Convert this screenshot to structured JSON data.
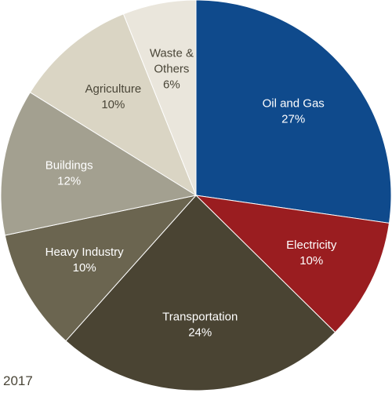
{
  "chart_data": {
    "type": "pie",
    "title": "",
    "slices": [
      {
        "label": "Oil and Gas",
        "value": 27,
        "display": "27%",
        "color": "#0f4a8c",
        "text_color": "#ffffff"
      },
      {
        "label": "Electricity",
        "value": 10,
        "display": "10%",
        "color": "#9a1d20",
        "text_color": "#ffffff"
      },
      {
        "label": "Transportation",
        "value": 24,
        "display": "24%",
        "color": "#4a4433",
        "text_color": "#ffffff"
      },
      {
        "label": "Heavy Industry",
        "value": 10,
        "display": "10%",
        "color": "#6b6550",
        "text_color": "#ffffff"
      },
      {
        "label": "Buildings",
        "value": 12,
        "display": "12%",
        "color": "#a3a090",
        "text_color": "#ffffff"
      },
      {
        "label": "Agriculture",
        "value": 10,
        "display": "10%",
        "color": "#dad5c4",
        "text_color": "#4a4638"
      },
      {
        "label": "Waste & Others",
        "value": 6,
        "display": "6%",
        "color": "#eae6dc",
        "text_color": "#4a4638",
        "label_lines": [
          "Waste &",
          "Others"
        ]
      }
    ]
  },
  "footer": {
    "year": "2017"
  }
}
